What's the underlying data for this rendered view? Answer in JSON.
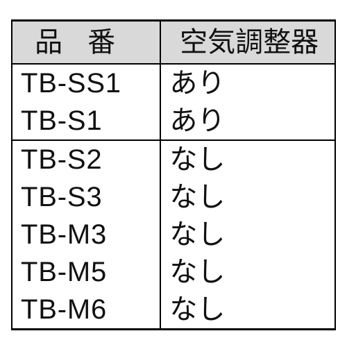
{
  "table": {
    "columns": [
      {
        "key": "partno",
        "label": "品番"
      },
      {
        "key": "air",
        "label": "空気調整器"
      }
    ],
    "header_bg": "#d9d9da",
    "border_color": "#000000",
    "rows": [
      {
        "partno": "TB-SS1",
        "air": "あり",
        "group_end": false
      },
      {
        "partno": "TB-S1",
        "air": "あり",
        "group_end": true
      },
      {
        "partno": "TB-S2",
        "air": "なし",
        "group_end": false
      },
      {
        "partno": "TB-S3",
        "air": "なし",
        "group_end": false
      },
      {
        "partno": "TB-M3",
        "air": "なし",
        "group_end": false
      },
      {
        "partno": "TB-M5",
        "air": "なし",
        "group_end": false
      },
      {
        "partno": "TB-M6",
        "air": "なし",
        "group_end": true
      }
    ],
    "font_size_header": 40,
    "font_size_body": 40
  }
}
